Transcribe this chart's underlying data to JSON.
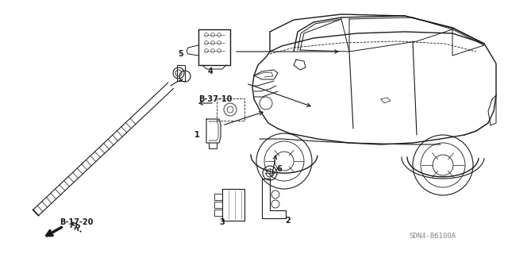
{
  "bg_color": "#ffffff",
  "lc": "#1a1a1a",
  "gray": "#888888",
  "figsize": [
    6.4,
    3.2
  ],
  "dpi": 100,
  "xlim": [
    0,
    640
  ],
  "ylim": [
    0,
    320
  ],
  "labels": {
    "SDN4": "SDN4-B6100A",
    "B1720": "B-17-20",
    "B3710": "B-37-10"
  }
}
